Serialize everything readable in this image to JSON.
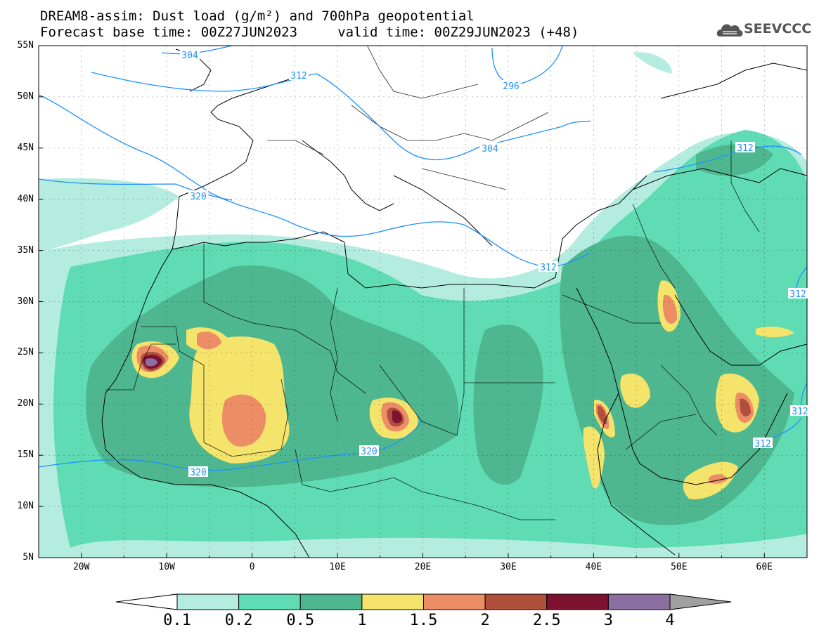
{
  "title": {
    "line1": "DREAM8-assim: Dust load (g/m²) and 700hPa geopotential",
    "line2": "Forecast base time: 00Z27JUN2023     valid time: 00Z29JUN2023 (+48)"
  },
  "logo": {
    "text": "SEEVCCC",
    "icon": "cloud-icon"
  },
  "map": {
    "lon_range": [
      -25,
      65
    ],
    "lat_range": [
      5,
      55
    ],
    "lat_labels": [
      "55N",
      "50N",
      "45N",
      "40N",
      "35N",
      "30N",
      "25N",
      "20N",
      "15N",
      "10N",
      "5N"
    ],
    "lon_labels": [
      "20W",
      "10W",
      "0",
      "10E",
      "20E",
      "30E",
      "40E",
      "50E",
      "60E"
    ],
    "grid": true
  },
  "contours": [
    {
      "value": "304",
      "pos": [
        270,
        78
      ]
    },
    {
      "value": "312",
      "pos": [
        425,
        107
      ]
    },
    {
      "value": "296",
      "pos": [
        727,
        122
      ]
    },
    {
      "value": "304",
      "pos": [
        697,
        211
      ]
    },
    {
      "value": "312",
      "pos": [
        1060,
        210
      ]
    },
    {
      "value": "320",
      "pos": [
        282,
        279
      ]
    },
    {
      "value": "312",
      "pos": [
        780,
        380
      ]
    },
    {
      "value": "312",
      "pos": [
        1135,
        418
      ]
    },
    {
      "value": "320",
      "pos": [
        525,
        642
      ]
    },
    {
      "value": "320",
      "pos": [
        282,
        672
      ]
    },
    {
      "value": "312",
      "pos": [
        1085,
        631
      ]
    },
    {
      "value": "312",
      "pos": [
        1138,
        585
      ]
    }
  ],
  "colorbar": {
    "labels": [
      "0.1",
      "0.2",
      "0.5",
      "1",
      "1.5",
      "2",
      "2.5",
      "3",
      "4"
    ],
    "colors": [
      "#b4ede0",
      "#5fdcb4",
      "#4fb78f",
      "#f4e46c",
      "#ec8d66",
      "#b0503c",
      "#7c1130",
      "#8b6fa0"
    ],
    "under_color": "#ffffff",
    "over_color": "#a0a0a0"
  }
}
